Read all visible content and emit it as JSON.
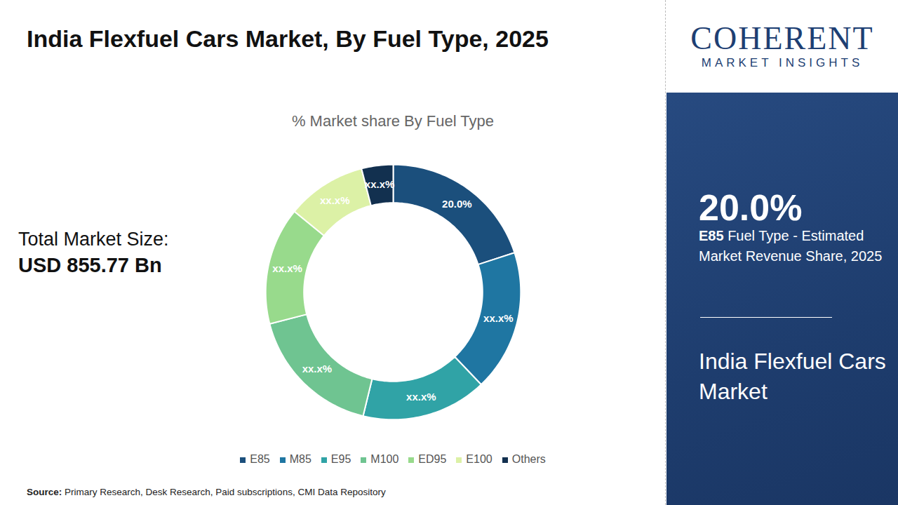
{
  "chart_data": {
    "type": "pie",
    "title": "India Flexfuel Cars Market, By Fuel Type, 2025",
    "subtitle": "% Market share By Fuel Type",
    "categories": [
      "E85",
      "M85",
      "E95",
      "M100",
      "ED95",
      "E100",
      "Others"
    ],
    "values": [
      20.0,
      17.9,
      15.9,
      17.2,
      14.9,
      10.1,
      4.0
    ],
    "value_labels": [
      "20.0%",
      "xx.x%",
      "xx.x%",
      "xx.x%",
      "xx.x%",
      "xx.x%",
      "xx.x%"
    ],
    "colors": [
      "#1b4f7c",
      "#1f76a2",
      "#30a3a6",
      "#6fc491",
      "#98da8c",
      "#dcf1a6",
      "#12304f"
    ],
    "data_labels": true,
    "legend": "bottom"
  },
  "page": {
    "market_size_label": "Total Market Size:",
    "market_size_value": "USD 855.77 Bn",
    "logo_name": "COHERENT",
    "logo_sub": "MARKET INSIGHTS",
    "highlight_value": "20.0%",
    "highlight_bold": "E85",
    "highlight_text": "Fuel Type - Estimated Market Revenue Share, 2025",
    "panel_title": "India Flexfuel Cars Market",
    "source_label": "Source:",
    "source_text": "Primary Research, Desk Research, Paid subscriptions, CMI Data Repository"
  }
}
